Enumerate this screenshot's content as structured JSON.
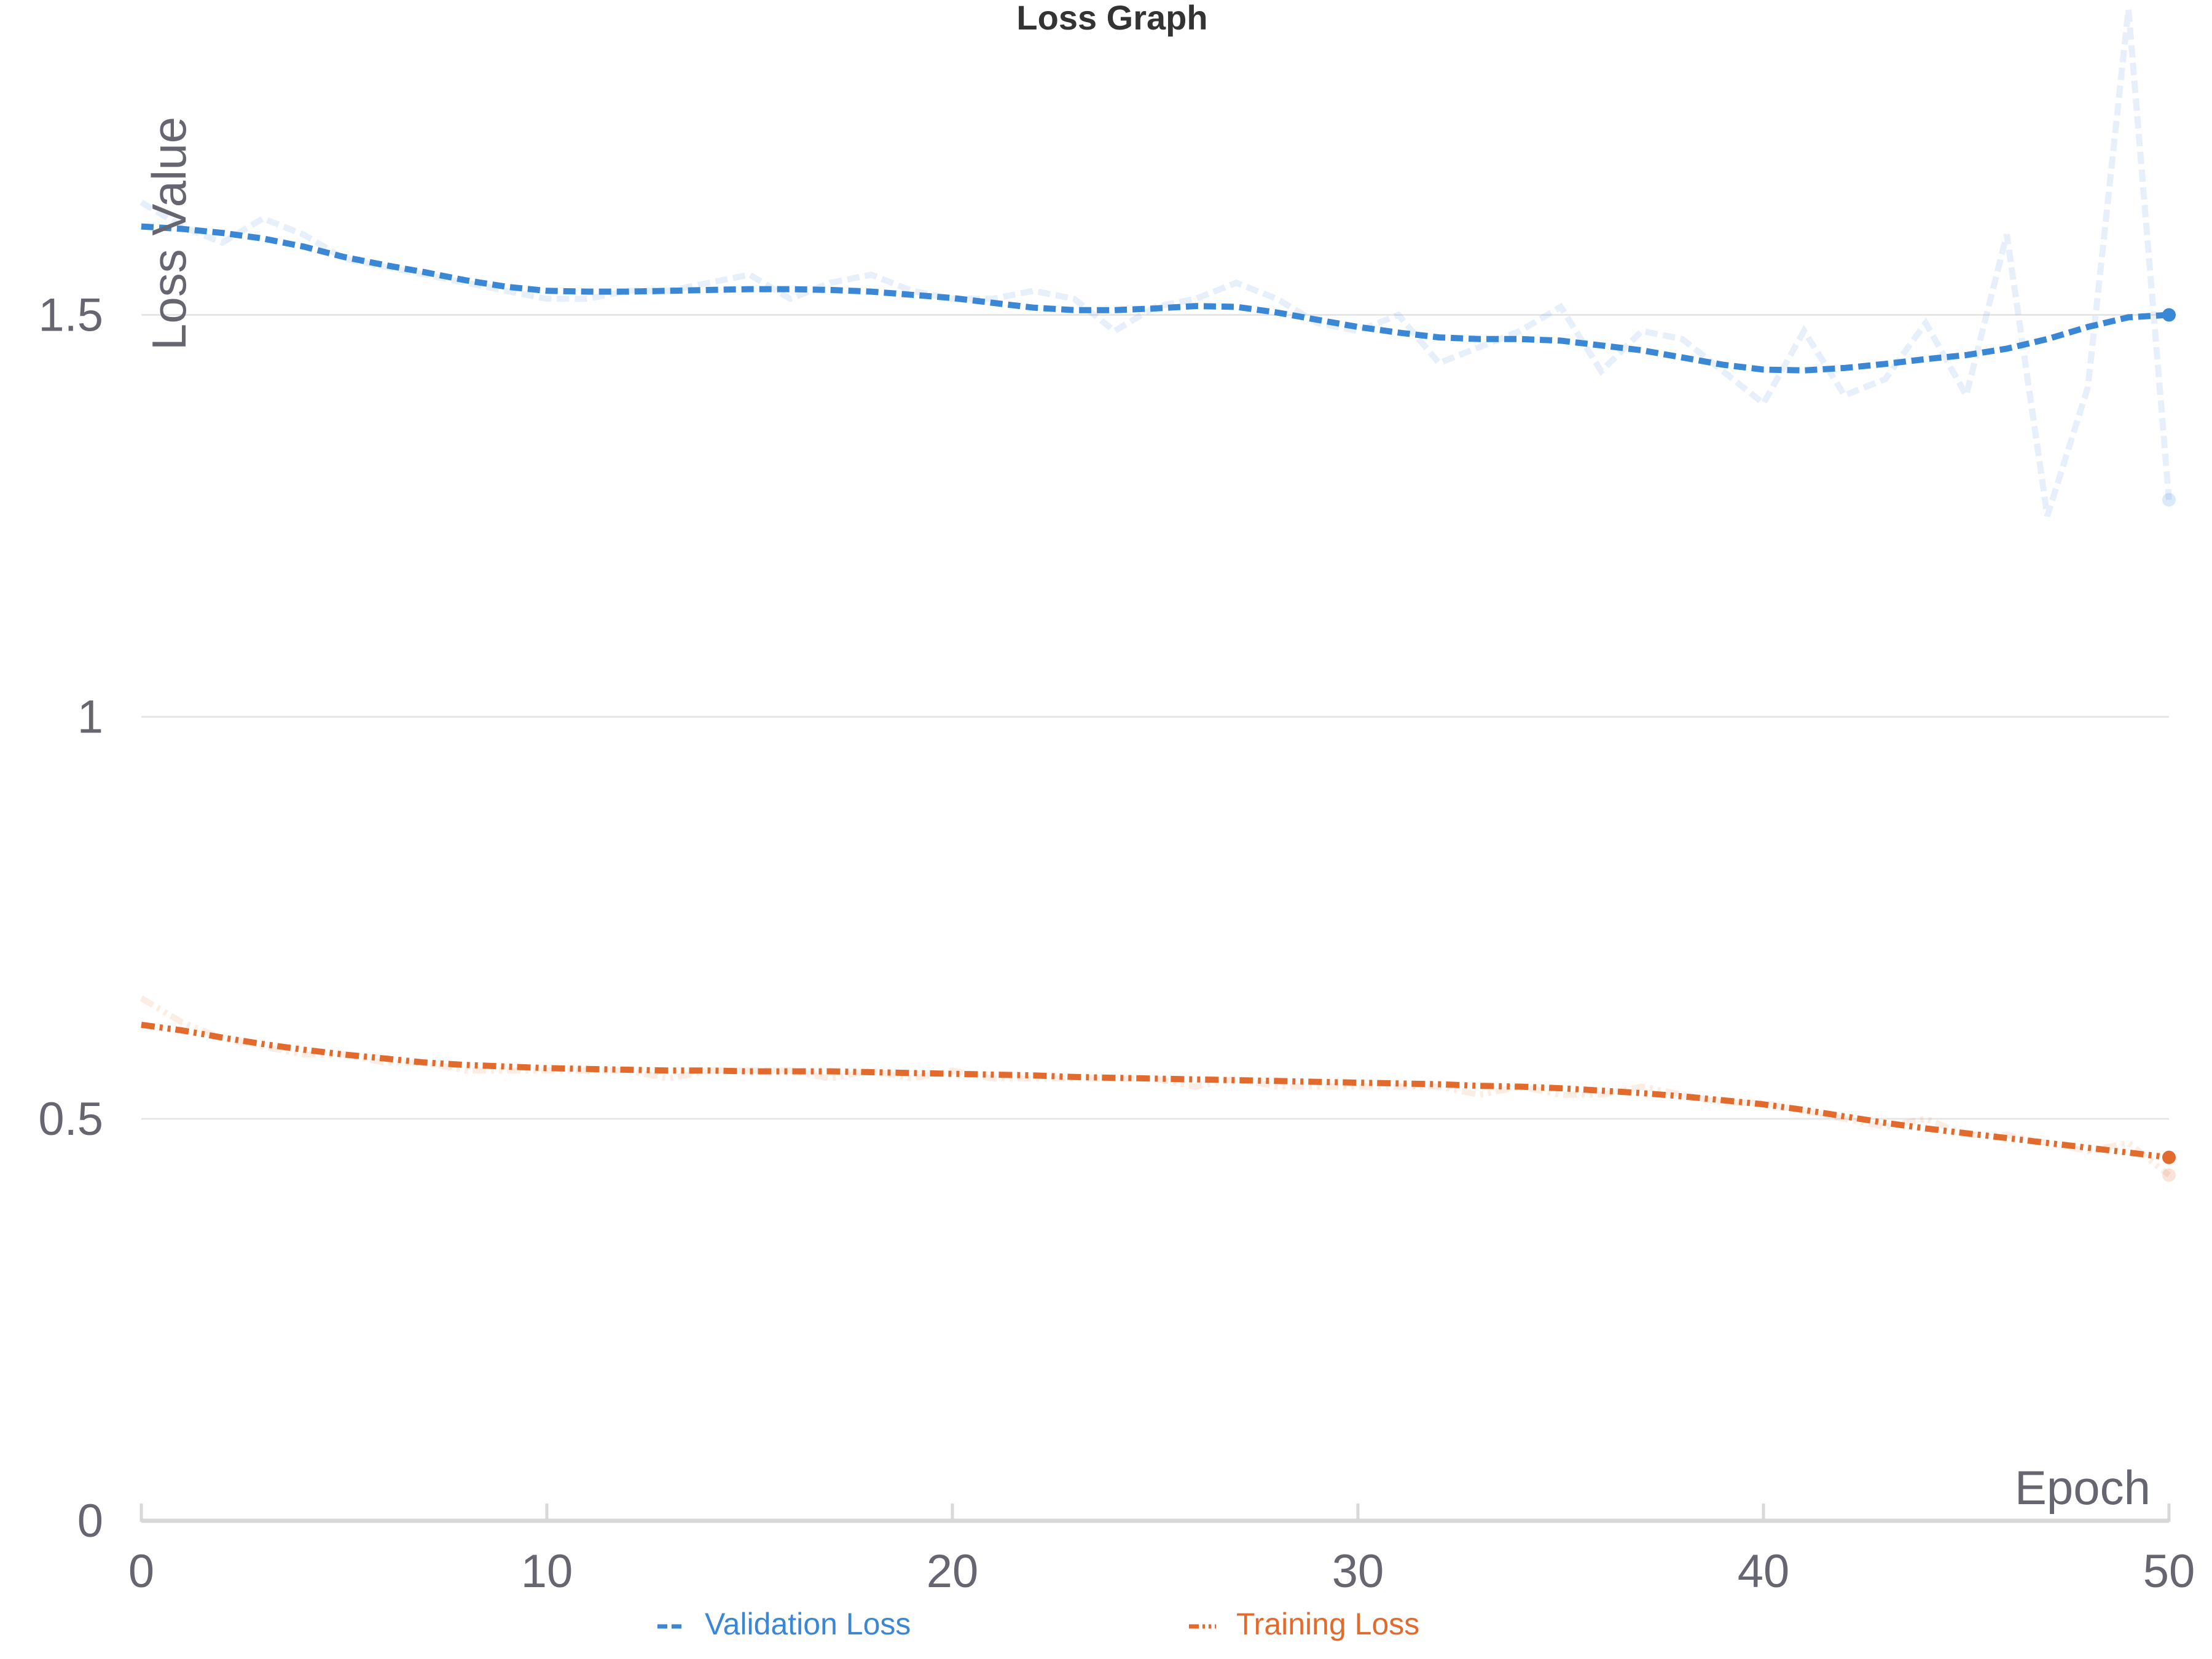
{
  "chart_data": {
    "type": "line",
    "title": "Loss Graph",
    "xlabel": "Epoch",
    "ylabel": "Loss Value",
    "xlim": [
      0,
      50
    ],
    "ylim": [
      0,
      1.8
    ],
    "x_ticks": [
      0,
      10,
      20,
      30,
      40,
      50
    ],
    "y_ticks": [
      0,
      0.5,
      1,
      1.5
    ],
    "y_tick_labels": [
      "0",
      "0.5",
      "1",
      "1.5"
    ],
    "grid": true,
    "legend_position": "bottom",
    "colors": {
      "validation": "#3a87d6",
      "training": "#e36a2d"
    },
    "x": [
      0,
      1,
      2,
      3,
      4,
      5,
      6,
      7,
      8,
      9,
      10,
      11,
      12,
      13,
      14,
      15,
      16,
      17,
      18,
      19,
      20,
      21,
      22,
      23,
      24,
      25,
      26,
      27,
      28,
      29,
      30,
      31,
      32,
      33,
      34,
      35,
      36,
      37,
      38,
      39,
      40,
      41,
      42,
      43,
      44,
      45,
      46,
      47,
      48,
      49,
      50
    ],
    "series": [
      {
        "name": "Validation Loss",
        "style": "dashed",
        "raw_values": [
          1.64,
          1.61,
          1.59,
          1.62,
          1.6,
          1.57,
          1.56,
          1.55,
          1.54,
          1.53,
          1.52,
          1.52,
          1.53,
          1.53,
          1.54,
          1.55,
          1.52,
          1.54,
          1.55,
          1.53,
          1.52,
          1.52,
          1.53,
          1.52,
          1.48,
          1.51,
          1.52,
          1.54,
          1.52,
          1.49,
          1.48,
          1.5,
          1.44,
          1.46,
          1.48,
          1.51,
          1.43,
          1.48,
          1.47,
          1.43,
          1.39,
          1.48,
          1.4,
          1.42,
          1.49,
          1.4,
          1.6,
          1.25,
          1.41,
          1.88,
          1.27
        ],
        "smoothed_values": [
          1.61,
          1.607,
          1.602,
          1.595,
          1.585,
          1.572,
          1.562,
          1.553,
          1.543,
          1.535,
          1.53,
          1.529,
          1.529,
          1.53,
          1.531,
          1.532,
          1.532,
          1.531,
          1.529,
          1.525,
          1.521,
          1.515,
          1.509,
          1.506,
          1.506,
          1.508,
          1.511,
          1.51,
          1.503,
          1.494,
          1.485,
          1.478,
          1.472,
          1.47,
          1.47,
          1.468,
          1.462,
          1.456,
          1.447,
          1.438,
          1.432,
          1.431,
          1.434,
          1.439,
          1.445,
          1.45,
          1.458,
          1.47,
          1.485,
          1.497,
          1.5
        ]
      },
      {
        "name": "Training Loss",
        "style": "dash-dot",
        "raw_values": [
          0.65,
          0.62,
          0.6,
          0.59,
          0.58,
          0.58,
          0.57,
          0.57,
          0.56,
          0.56,
          0.56,
          0.56,
          0.56,
          0.55,
          0.56,
          0.56,
          0.56,
          0.55,
          0.56,
          0.55,
          0.56,
          0.55,
          0.55,
          0.55,
          0.55,
          0.55,
          0.54,
          0.55,
          0.54,
          0.54,
          0.54,
          0.54,
          0.54,
          0.53,
          0.54,
          0.53,
          0.53,
          0.54,
          0.53,
          0.52,
          0.52,
          0.51,
          0.5,
          0.49,
          0.5,
          0.48,
          0.48,
          0.47,
          0.46,
          0.47,
          0.43
        ],
        "smoothed_values": [
          0.617,
          0.61,
          0.601,
          0.593,
          0.586,
          0.58,
          0.575,
          0.57,
          0.567,
          0.565,
          0.563,
          0.562,
          0.561,
          0.56,
          0.56,
          0.559,
          0.559,
          0.559,
          0.558,
          0.557,
          0.556,
          0.555,
          0.554,
          0.552,
          0.551,
          0.55,
          0.549,
          0.548,
          0.547,
          0.546,
          0.545,
          0.544,
          0.543,
          0.541,
          0.54,
          0.538,
          0.535,
          0.532,
          0.528,
          0.523,
          0.518,
          0.511,
          0.503,
          0.495,
          0.488,
          0.482,
          0.476,
          0.47,
          0.464,
          0.458,
          0.452
        ]
      }
    ]
  }
}
